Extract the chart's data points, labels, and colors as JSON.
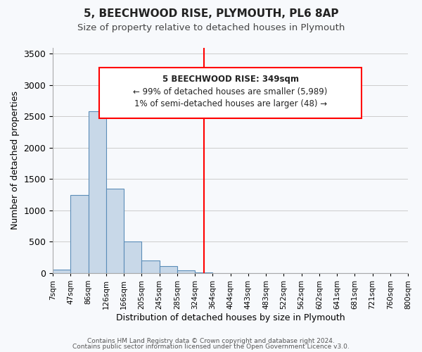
{
  "title": "5, BEECHWOOD RISE, PLYMOUTH, PL6 8AP",
  "subtitle": "Size of property relative to detached houses in Plymouth",
  "xlabel": "Distribution of detached houses by size in Plymouth",
  "ylabel": "Number of detached properties",
  "bar_color": "#c8d8e8",
  "bar_edge_color": "#5b8db8",
  "bin_labels": [
    "7sqm",
    "47sqm",
    "86sqm",
    "126sqm",
    "166sqm",
    "205sqm",
    "245sqm",
    "285sqm",
    "324sqm",
    "364sqm",
    "404sqm",
    "443sqm",
    "483sqm",
    "522sqm",
    "562sqm",
    "602sqm",
    "641sqm",
    "681sqm",
    "721sqm",
    "760sqm",
    "800sqm"
  ],
  "bar_heights": [
    50,
    1240,
    2580,
    1350,
    500,
    200,
    110,
    40,
    5,
    2,
    1,
    0,
    0,
    0,
    0,
    0,
    0,
    0,
    0,
    0
  ],
  "ylim": [
    0,
    3600
  ],
  "yticks": [
    0,
    500,
    1000,
    1500,
    2000,
    2500,
    3000,
    3500
  ],
  "property_line_x": 8.5,
  "annotation_title": "5 BEECHWOOD RISE: 349sqm",
  "annotation_line1": "← 99% of detached houses are smaller (5,989)",
  "annotation_line2": "1% of semi-detached houses are larger (48) →",
  "footer1": "Contains HM Land Registry data © Crown copyright and database right 2024.",
  "footer2": "Contains public sector information licensed under the Open Government Licence v3.0.",
  "background_color": "#f7f9fc",
  "grid_color": "#cccccc"
}
